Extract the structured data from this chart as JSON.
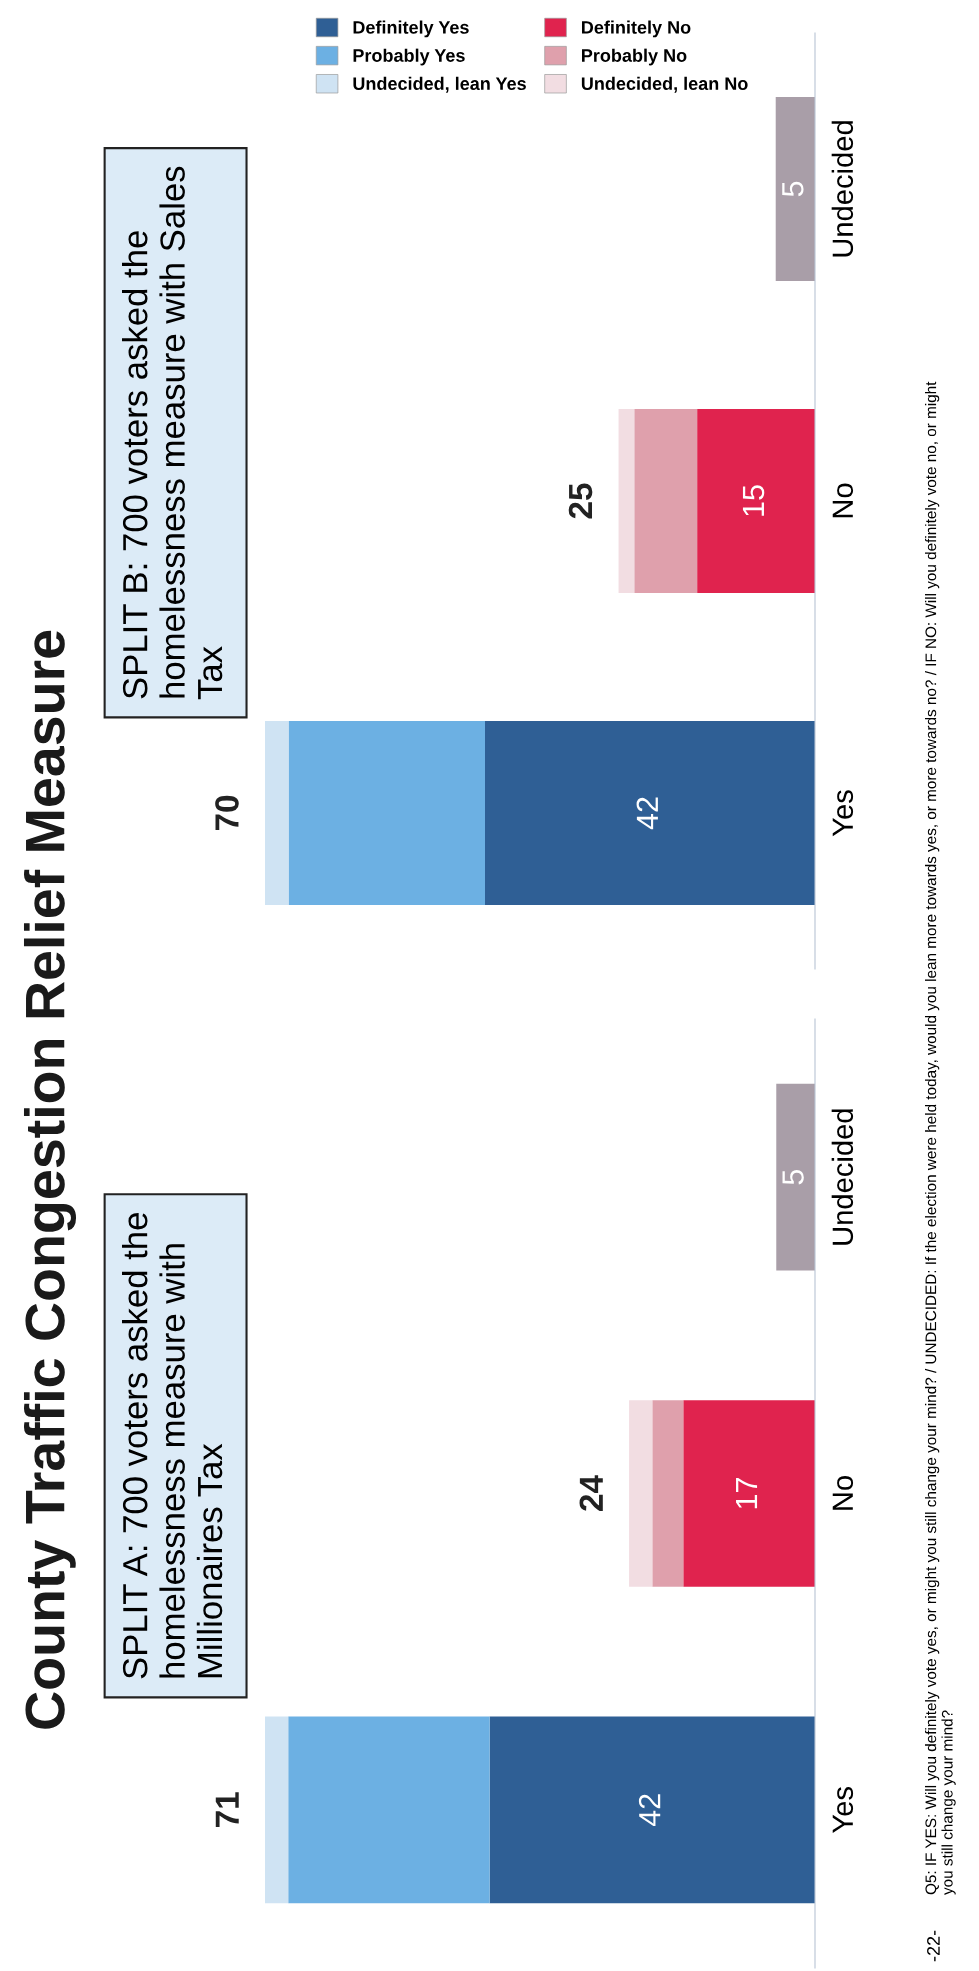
{
  "chart_data": [
    {
      "type": "bar",
      "orientation": "horizontal",
      "stacked": true,
      "title": "County Traffic Congestion Relief Measure",
      "subtitle": "SPLIT A: 700 voters asked the homelessness measure with Millionaires Tax",
      "categories": [
        "Undecided",
        "No",
        "Yes"
      ],
      "series": [
        {
          "color": "#2f5f95",
          "values": [
            null,
            null,
            42
          ],
          "value_labels": [
            null,
            null,
            "42"
          ]
        },
        {
          "color": "#6cb0e3",
          "values": [
            null,
            null,
            26
          ],
          "value_labels": [
            null,
            null,
            null
          ]
        },
        {
          "color": "#cfe3f3",
          "values": [
            null,
            null,
            3
          ],
          "value_labels": [
            null,
            null,
            null
          ]
        },
        {
          "color": "#e0234e",
          "values": [
            null,
            17,
            null
          ],
          "value_labels": [
            null,
            "17",
            null
          ]
        },
        {
          "color": "#dfa0ac",
          "values": [
            null,
            4,
            null
          ],
          "value_labels": [
            null,
            null,
            null
          ]
        },
        {
          "color": "#f2dde2",
          "values": [
            null,
            3,
            null
          ],
          "value_labels": [
            null,
            null,
            null
          ]
        },
        {
          "color": "#a99ea8",
          "values": [
            5,
            null,
            null
          ],
          "value_labels": [
            "5",
            null,
            null
          ]
        }
      ],
      "totals": [
        null,
        "24",
        "71"
      ],
      "annotations": [
        "-22-",
        "Q5: IF YES: Will you definitely vote yes, or might you still change your mind? / UNDECIDED: If the election were held today, would you lean more towards yes, or more towards no? / IF NO: Will you definitely vote no, or might you still change your mind?"
      ],
      "grid": false
    },
    {
      "type": "bar",
      "orientation": "horizontal",
      "stacked": true,
      "subtitle": "SPLIT B: 700 voters asked the homelessness measure with Sales Tax",
      "categories": [
        "Undecided",
        "No",
        "Yes"
      ],
      "series": [
        {
          "name": "Definitely Yes",
          "color": "#2f5f95",
          "values": [
            null,
            null,
            42
          ],
          "value_labels": [
            null,
            null,
            "42"
          ]
        },
        {
          "name": "Probably Yes",
          "color": "#6cb0e3",
          "values": [
            null,
            null,
            25
          ],
          "value_labels": [
            null,
            null,
            null
          ]
        },
        {
          "name": "Undecided, lean Yes",
          "color": "#cfe3f3",
          "values": [
            null,
            null,
            3
          ],
          "value_labels": [
            null,
            null,
            null
          ]
        },
        {
          "name": "Definitely No",
          "color": "#e0234e",
          "values": [
            null,
            15,
            null
          ],
          "value_labels": [
            null,
            "15",
            null
          ]
        },
        {
          "name": "Probably No",
          "color": "#dfa0ac",
          "values": [
            null,
            8,
            null
          ],
          "value_labels": [
            null,
            null,
            null
          ]
        },
        {
          "name": "Undecided, lean No",
          "color": "#f2dde2",
          "values": [
            null,
            2,
            null
          ],
          "value_labels": [
            null,
            null,
            null
          ]
        },
        {
          "color": "#a99ea8",
          "values": [
            5,
            null,
            null
          ],
          "value_labels": [
            "5",
            null,
            null
          ]
        }
      ],
      "totals": [
        null,
        "25",
        "70"
      ],
      "legend": "top right",
      "grid": false
    }
  ]
}
